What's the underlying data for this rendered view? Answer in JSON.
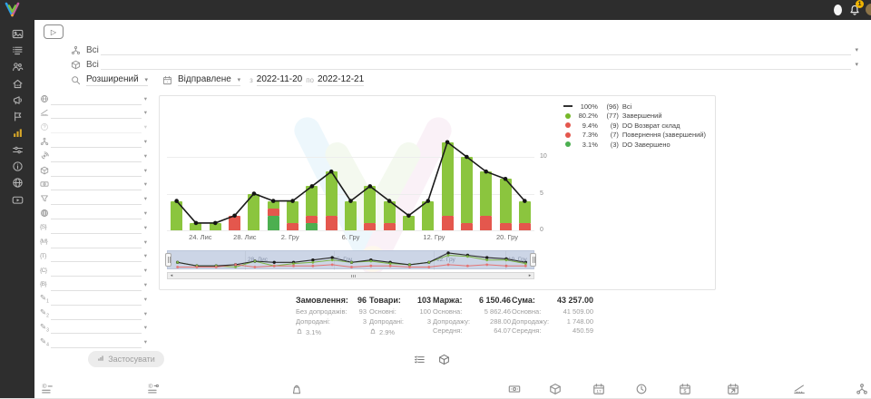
{
  "icons": {
    "caret-down": "▾",
    "play-outline": "▷",
    "scroll-left": "◂",
    "scroll-right": "▸"
  },
  "topbar": {
    "notification_badge": "1"
  },
  "sidebar": {
    "items": [
      {
        "name": "dashboard"
      },
      {
        "name": "orders"
      },
      {
        "name": "customers"
      },
      {
        "name": "store"
      },
      {
        "name": "megaphone"
      },
      {
        "name": "flag"
      },
      {
        "name": "analytics",
        "active": true
      },
      {
        "name": "sliders"
      },
      {
        "name": "info"
      },
      {
        "name": "globe"
      },
      {
        "name": "video"
      }
    ]
  },
  "header": {
    "filter1": {
      "icon": "hierarchy",
      "value": "Всі"
    },
    "filter2": {
      "icon": "cube",
      "value": "Всі"
    },
    "search_mode": "Розширений",
    "status_filter": "Відправлене",
    "date_from_label": "з",
    "date_from": "2022-11-20",
    "date_to_label": "по",
    "date_to": "2022-12-21"
  },
  "filter_panel": {
    "rows": [
      {
        "icon": "globe"
      },
      {
        "icon": "ruler"
      },
      {
        "icon": "help",
        "disabled": true
      },
      {
        "icon": "hierarchy"
      },
      {
        "icon": "fingerprint"
      },
      {
        "icon": "cube"
      },
      {
        "icon": "eye"
      },
      {
        "icon": "funnel"
      },
      {
        "icon": "web"
      },
      {
        "icon": "brace",
        "text": "{S}"
      },
      {
        "icon": "brace",
        "text": "{M}"
      },
      {
        "icon": "brace",
        "text": "{T}"
      },
      {
        "icon": "brace",
        "text": "{C}"
      },
      {
        "icon": "brace",
        "text": "{B}"
      },
      {
        "icon": "pencil",
        "sub": "1"
      },
      {
        "icon": "pencil",
        "sub": "2"
      },
      {
        "icon": "pencil",
        "sub": "3"
      },
      {
        "icon": "pencil",
        "sub": "4"
      }
    ],
    "apply_label": "Застосувати"
  },
  "chart_data": {
    "type": "bar",
    "stacked": true,
    "overlay": "line",
    "y_ticks": [
      0,
      5,
      10
    ],
    "ylim": [
      0,
      14.5
    ],
    "grid": true,
    "legend_position": "top-right",
    "x_tick_labels": [
      {
        "pos": 0.091,
        "label": "24. Лис"
      },
      {
        "pos": 0.212,
        "label": "28. Лис"
      },
      {
        "pos": 0.335,
        "label": "2. Гру"
      },
      {
        "pos": 0.5,
        "label": "6. Гру"
      },
      {
        "pos": 0.727,
        "label": "12. Гру"
      },
      {
        "pos": 0.926,
        "label": "20. Гру"
      }
    ],
    "series": [
      {
        "name": "DO Завершено",
        "color": "#4caf50",
        "values": [
          0,
          0,
          0,
          0,
          0,
          2,
          0,
          1,
          0,
          0,
          0,
          0,
          0,
          0,
          0,
          0,
          0,
          0,
          0
        ]
      },
      {
        "name": "DO Возврат склад + Повернення (завершений)",
        "color": "#e4574d",
        "values": [
          0,
          0,
          0,
          2,
          0,
          1,
          1,
          1,
          2,
          0,
          1,
          1,
          0,
          0,
          2,
          1,
          2,
          1,
          1
        ]
      },
      {
        "name": "Завершений",
        "color": "#8bc53e",
        "values": [
          4,
          1,
          1,
          0,
          5,
          1,
          3,
          4,
          6,
          4,
          5,
          3,
          2,
          4,
          10,
          9,
          6,
          6,
          3
        ]
      }
    ],
    "line_series": {
      "name": "Всі",
      "color": "#1a1a1a",
      "values": [
        4,
        1,
        1,
        2,
        5,
        4,
        4,
        6,
        8,
        4,
        6,
        4,
        2,
        4,
        12,
        10,
        8,
        7,
        4
      ]
    },
    "legend": [
      {
        "marker": "line",
        "color": "#333333",
        "pct": "100%",
        "count": "(96)",
        "label": "Всі"
      },
      {
        "marker": "dot",
        "color": "#76b82a",
        "pct": "80.2%",
        "count": "(77)",
        "label": "Завершений"
      },
      {
        "marker": "dot",
        "color": "#e4574d",
        "pct": "9.4%",
        "count": "(9)",
        "label": "DO Возврат склад"
      },
      {
        "marker": "dot",
        "color": "#e4574d",
        "pct": "7.3%",
        "count": "(7)",
        "label": "Повернення (завершений)"
      },
      {
        "marker": "dot",
        "color": "#4caf50",
        "pct": "3.1%",
        "count": "(3)",
        "label": "DO Завершено"
      }
    ],
    "navigator": {
      "bg": "#ccd5e6",
      "tick_labels": [
        "28. Лис",
        "5. Гру",
        "12. Гру",
        "19. Гру"
      ]
    }
  },
  "stats": [
    {
      "title": "Замовлення:",
      "value": "96",
      "rows": [
        [
          "Без допродажів:",
          "93"
        ],
        [
          "Допродані:",
          "3"
        ]
      ],
      "badge_pct": "3.1%"
    },
    {
      "title": "Товари:",
      "value": "103",
      "rows": [
        [
          "Основні:",
          "100"
        ],
        [
          "Допродані:",
          "3"
        ]
      ],
      "badge_pct": "2.9%"
    },
    {
      "title": "Маржа:",
      "value": "6 150.46",
      "rows": [
        [
          "Основна:",
          "5 862.46"
        ],
        [
          "Допродажу:",
          "288.00"
        ],
        [
          "Середня:",
          "64.07"
        ]
      ]
    },
    {
      "title": "Сума:",
      "value": "43 257.00",
      "rows": [
        [
          "Основна:",
          "41 509.00"
        ],
        [
          "Допродажу:",
          "1 748.00"
        ],
        [
          "Середня:",
          "450.59"
        ]
      ]
    }
  ],
  "stats_toolbar_icons": [
    "list-check",
    "cube"
  ],
  "footer_icons": [
    "id-list",
    "id-link",
    "bag",
    "money",
    "cube",
    "calendar-17",
    "clock",
    "calendar-dollar",
    "calendar-arrow",
    "ruler",
    "hierarchy"
  ]
}
